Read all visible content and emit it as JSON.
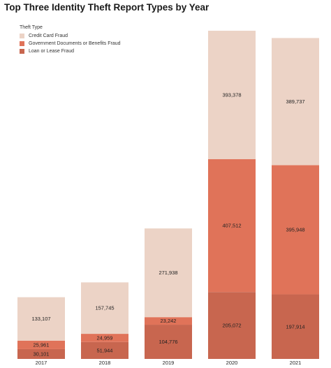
{
  "chart_data": {
    "type": "bar",
    "stacked": true,
    "title": "Top Three Identity Theft Report Types by Year",
    "legend_title": "Theft Type",
    "legend_position": "top-left",
    "categories": [
      "2017",
      "2018",
      "2019",
      "2020",
      "2021"
    ],
    "series": [
      {
        "name": "Loan or Lease Fraud",
        "color": "#c8664f",
        "values": [
          30101,
          51944,
          104776,
          205072,
          197914
        ],
        "labels": [
          "30,101",
          "51,944",
          "104,776",
          "205,072",
          "197,914"
        ]
      },
      {
        "name": "Government Documents or Benefits Fraud",
        "color": "#e07359",
        "values": [
          25961,
          24959,
          23242,
          407512,
          395948
        ],
        "labels": [
          "25,961",
          "24,959",
          "23,242",
          "407,512",
          "395,948"
        ]
      },
      {
        "name": "Credit Card Fraud",
        "color": "#ecd3c6",
        "values": [
          133107,
          157745,
          271938,
          393378,
          389737
        ],
        "labels": [
          "133,107",
          "157,745",
          "271,938",
          "393,378",
          "389,737"
        ]
      }
    ],
    "ylim": [
      0,
      1006000
    ],
    "grid": false
  }
}
